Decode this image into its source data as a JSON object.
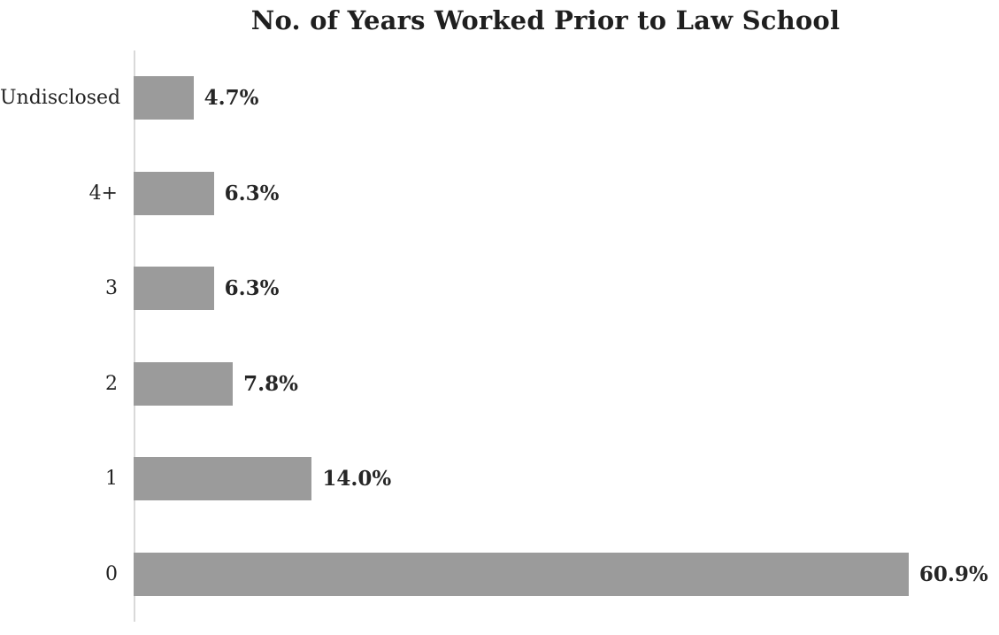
{
  "title": "No. of Years Worked Prior to Law School",
  "chart_data": {
    "type": "bar",
    "orientation": "horizontal",
    "title": "No. of Years Worked Prior to Law School",
    "xlabel": "",
    "ylabel": "",
    "categories": [
      "Undisclosed",
      "4+",
      "3",
      "2",
      "1",
      "0"
    ],
    "values": [
      4.7,
      6.3,
      6.3,
      7.8,
      14.0,
      60.9
    ],
    "value_labels": [
      "4.7%",
      "6.3%",
      "6.3%",
      "7.8%",
      "14.0%",
      "60.9%"
    ],
    "xlim": [
      0,
      68
    ],
    "grid": false,
    "legend": null,
    "colors": {
      "bar": "#9b9b9b",
      "axis_line": "#d9d9d9",
      "title_text": "#1f1f1f",
      "category_text": "#232323",
      "value_text": "#262626",
      "background": "#ffffff"
    }
  }
}
